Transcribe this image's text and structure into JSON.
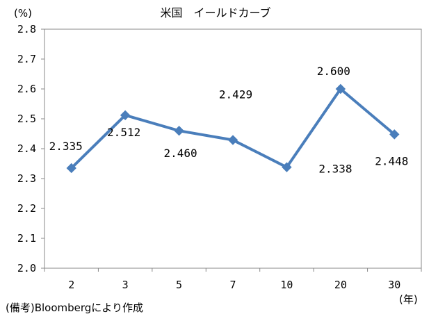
{
  "chart_data": {
    "type": "line",
    "title": "米国　イールドカーブ",
    "y_unit": "(%)",
    "x_unit": "(年)",
    "categories": [
      "2",
      "3",
      "5",
      "7",
      "10",
      "20",
      "30"
    ],
    "values": [
      2.335,
      2.512,
      2.46,
      2.429,
      2.338,
      2.6,
      2.448
    ],
    "data_labels": [
      "2.335",
      "2.512",
      "2.460",
      "2.429",
      "2.338",
      "2.600",
      "2.448"
    ],
    "ylim": [
      2.0,
      2.8
    ],
    "yticks": [
      "2.0",
      "2.1",
      "2.2",
      "2.3",
      "2.4",
      "2.5",
      "2.6",
      "2.7",
      "2.8"
    ],
    "grid": false,
    "legend": "none",
    "series_color": "#4a7ebb",
    "marker": "diamond"
  },
  "source_note": "(備考)Bloombergにより作成"
}
